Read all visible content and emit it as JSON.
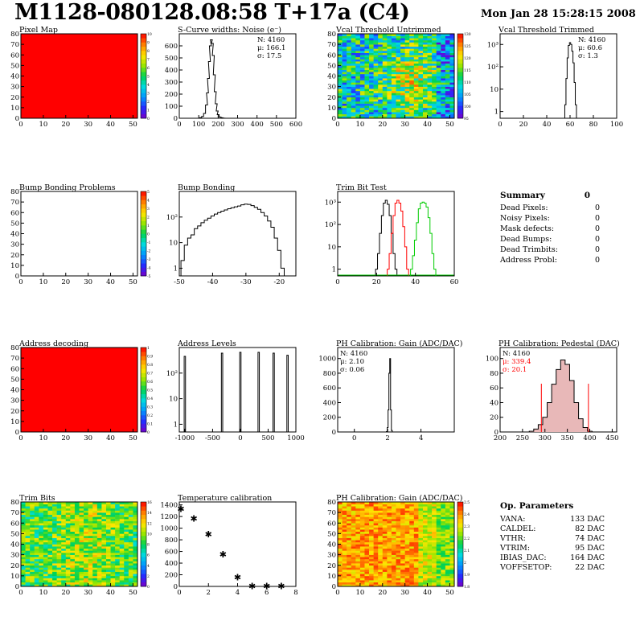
{
  "title": "M1128-080128.08:58 T+17a (C4)",
  "date": "Mon Jan 28 15:28:15 2008",
  "colors": {
    "bg": "#ffffff",
    "red": "#ff0000",
    "green": "#00cc00",
    "black": "#000000",
    "pedestal_fill": "#e8b8b8"
  },
  "summary": {
    "title": "Summary",
    "total": "0",
    "rows": [
      {
        "label": "Dead Pixels:",
        "value": "0"
      },
      {
        "label": "Noisy Pixels:",
        "value": "0"
      },
      {
        "label": "Mask defects:",
        "value": "0"
      },
      {
        "label": "Dead Bumps:",
        "value": "0"
      },
      {
        "label": "Dead Trimbits:",
        "value": "0"
      },
      {
        "label": "Address Probl:",
        "value": "0"
      }
    ]
  },
  "op_params": {
    "title": "Op. Parameters",
    "rows": [
      {
        "label": "VANA:",
        "value": "133 DAC"
      },
      {
        "label": "CALDEL:",
        "value": "82 DAC"
      },
      {
        "label": "VTHR:",
        "value": "74 DAC"
      },
      {
        "label": "VTRIM:",
        "value": "95 DAC"
      },
      {
        "label": "IBIAS_DAC:",
        "value": "164 DAC"
      },
      {
        "label": "VOFFSETOP:",
        "value": "22 DAC"
      }
    ]
  },
  "chart_data": [
    {
      "id": "pixel-map",
      "type": "heatmap",
      "title": "Pixel Map",
      "xlim": [
        0,
        52
      ],
      "ylim": [
        0,
        80
      ],
      "x_ticks": [
        "0",
        "10",
        "20",
        "30",
        "40",
        "50"
      ],
      "y_ticks": [
        "0",
        "10",
        "20",
        "30",
        "40",
        "50",
        "60",
        "70",
        "80"
      ],
      "z_ticks": [
        "0",
        "1",
        "2",
        "3",
        "4",
        "5",
        "6",
        "7",
        "8",
        "9",
        "10"
      ],
      "uniform_color": "#ff0000",
      "zlim": [
        0,
        10
      ]
    },
    {
      "id": "noise",
      "type": "bar",
      "title": "S-Curve widths: Noise (e⁻)",
      "xlim": [
        0,
        600
      ],
      "ylim": [
        0,
        700
      ],
      "x_ticks": [
        "0",
        "100",
        "200",
        "300",
        "400",
        "500",
        "600"
      ],
      "y_ticks": [
        "0",
        "100",
        "200",
        "300",
        "400",
        "500",
        "600"
      ],
      "stats": [
        "N: 4160",
        "μ: 166.1",
        "σ: 17.5"
      ],
      "x": [
        100,
        110,
        120,
        130,
        140,
        145,
        150,
        155,
        160,
        165,
        170,
        175,
        180,
        185,
        190,
        195,
        200,
        210,
        220,
        230,
        240
      ],
      "values": [
        0,
        5,
        15,
        40,
        110,
        210,
        330,
        470,
        600,
        650,
        620,
        520,
        360,
        220,
        120,
        60,
        30,
        10,
        4,
        1,
        0
      ]
    },
    {
      "id": "vcal-untrimmed",
      "type": "heatmap",
      "title": "Vcal Threshold Untrimmed",
      "xlim": [
        0,
        52
      ],
      "ylim": [
        0,
        80
      ],
      "x_ticks": [
        "0",
        "10",
        "20",
        "30",
        "40",
        "50"
      ],
      "y_ticks": [
        "0",
        "10",
        "20",
        "30",
        "40",
        "50",
        "60",
        "70",
        "80"
      ],
      "z_ticks": [
        "95",
        "100",
        "105",
        "110",
        "115",
        "120",
        "125",
        "130"
      ],
      "zlim": [
        95,
        130
      ]
    },
    {
      "id": "vcal-trimmed",
      "type": "bar",
      "title": "Vcal Threshold Trimmed",
      "xlim": [
        0,
        100
      ],
      "ylim_log": [
        0.5,
        3000
      ],
      "log_y": true,
      "x_ticks": [
        "0",
        "20",
        "40",
        "60",
        "80",
        "100"
      ],
      "y_ticks": [
        "1",
        "10",
        "10²",
        "10³"
      ],
      "stats": [
        "N: 4160",
        "μ: 60.6",
        "σ:  1.3"
      ],
      "x": [
        56,
        57,
        58,
        59,
        60,
        61,
        62,
        63,
        64,
        65
      ],
      "values": [
        2,
        30,
        250,
        900,
        1200,
        1000,
        500,
        150,
        20,
        2
      ]
    },
    {
      "id": "bump-problems",
      "type": "heatmap",
      "title": "Bump Bonding Problems",
      "xlim": [
        0,
        52
      ],
      "ylim": [
        0,
        80
      ],
      "x_ticks": [
        "0",
        "10",
        "20",
        "30",
        "40",
        "50"
      ],
      "y_ticks": [
        "0",
        "10",
        "20",
        "30",
        "40",
        "50",
        "60",
        "70",
        "80"
      ],
      "z_ticks": [
        "-5",
        "-4",
        "-3",
        "-2",
        "-1",
        "0",
        "1",
        "2",
        "3",
        "4",
        "5"
      ],
      "empty": true
    },
    {
      "id": "bump-bonding",
      "type": "bar",
      "title": "Bump Bonding",
      "xlim": [
        -50,
        -15
      ],
      "log_y": true,
      "ylim_log": [
        0.5,
        1000
      ],
      "x_ticks": [
        "-50",
        "-40",
        "-30",
        "-20"
      ],
      "y_ticks": [
        "1",
        "10",
        "10²"
      ],
      "x": [
        -49,
        -48,
        -47,
        -46,
        -45,
        -44,
        -43,
        -42,
        -41,
        -40,
        -39,
        -38,
        -37,
        -36,
        -35,
        -34,
        -33,
        -32,
        -31,
        -30,
        -29,
        -28,
        -27,
        -26,
        -25,
        -24,
        -23,
        -22,
        -21,
        -20,
        -19,
        -18
      ],
      "values": [
        2,
        8,
        15,
        20,
        35,
        45,
        60,
        75,
        90,
        110,
        130,
        150,
        170,
        190,
        210,
        230,
        250,
        270,
        300,
        320,
        310,
        280,
        240,
        200,
        150,
        110,
        70,
        40,
        15,
        5,
        1,
        0
      ]
    },
    {
      "id": "trim-bit-test",
      "type": "line",
      "title": "Trim Bit Test",
      "xlim": [
        0,
        60
      ],
      "log_y": true,
      "ylim_log": [
        0.5,
        3000
      ],
      "x_ticks": [
        "0",
        "20",
        "40",
        "60"
      ],
      "y_ticks": [
        "1",
        "10",
        "10²",
        "10³"
      ],
      "series": [
        {
          "color": "#000000",
          "x": [
            20,
            21,
            22,
            23,
            24,
            25,
            26,
            27,
            28,
            29,
            30
          ],
          "values": [
            1,
            5,
            40,
            250,
            900,
            1200,
            800,
            250,
            40,
            5,
            1
          ]
        },
        {
          "color": "#ff0000",
          "x": [
            26,
            27,
            28,
            29,
            30,
            31,
            32,
            33,
            34,
            35,
            36
          ],
          "values": [
            1,
            5,
            40,
            250,
            900,
            1200,
            900,
            400,
            80,
            10,
            1
          ]
        },
        {
          "color": "#00cc00",
          "x": [
            38,
            39,
            40,
            41,
            42,
            43,
            44,
            45,
            46,
            47,
            48,
            49,
            50
          ],
          "values": [
            1,
            4,
            20,
            120,
            500,
            900,
            1000,
            900,
            600,
            200,
            40,
            5,
            1
          ]
        }
      ]
    },
    {
      "id": "address-decoding",
      "type": "heatmap",
      "title": "Address decoding",
      "xlim": [
        0,
        52
      ],
      "ylim": [
        0,
        80
      ],
      "x_ticks": [
        "0",
        "10",
        "20",
        "30",
        "40",
        "50"
      ],
      "y_ticks": [
        "0",
        "10",
        "20",
        "30",
        "40",
        "50",
        "60",
        "70",
        "80"
      ],
      "z_ticks": [
        "0",
        "0.1",
        "0.2",
        "0.3",
        "0.4",
        "0.5",
        "0.6",
        "0.7",
        "0.8",
        "0.9",
        "1"
      ],
      "uniform_color": "#ff0000",
      "zlim": [
        0,
        1
      ]
    },
    {
      "id": "address-levels",
      "type": "bar",
      "title": "Address Levels",
      "xlim": [
        -1100,
        1000
      ],
      "log_y": true,
      "ylim_log": [
        0.5,
        1000
      ],
      "x_ticks": [
        "-1000",
        "-500",
        "0",
        "500",
        "1000"
      ],
      "y_ticks": [
        "1",
        "10",
        "10²"
      ],
      "peaks": [
        -1000,
        -330,
        0,
        330,
        600,
        850
      ],
      "values": [
        450,
        600,
        650,
        650,
        600,
        500
      ]
    },
    {
      "id": "ph-gain",
      "type": "bar",
      "title": "PH Calibration: Gain (ADC/DAC)",
      "xlim": [
        -1,
        6
      ],
      "ylim": [
        0,
        1150
      ],
      "x_ticks": [
        "0",
        "2",
        "4"
      ],
      "y_ticks": [
        "0",
        "200",
        "400",
        "600",
        "800",
        "1000"
      ],
      "stats": [
        "N: 4160",
        "μ: 2.10",
        "σ: 0.06"
      ],
      "x": [
        1.9,
        1.95,
        2.0,
        2.05,
        2.1,
        2.15,
        2.2,
        2.25,
        2.3
      ],
      "values": [
        0,
        5,
        60,
        300,
        800,
        1000,
        300,
        20,
        0
      ]
    },
    {
      "id": "ph-pedestal",
      "type": "bar",
      "title": "PH Calibration: Pedestal (DAC)",
      "xlim": [
        200,
        460
      ],
      "ylim": [
        0,
        115
      ],
      "x_ticks": [
        "200",
        "250",
        "300",
        "350",
        "400",
        "450"
      ],
      "y_ticks": [
        "0",
        "20",
        "40",
        "60",
        "80",
        "100"
      ],
      "stats": [
        "N: 4160",
        "μ: 339.4",
        "σ: 20.1"
      ],
      "x": [
        270,
        280,
        290,
        300,
        310,
        320,
        330,
        340,
        350,
        360,
        370,
        380,
        390,
        400
      ],
      "values": [
        1,
        4,
        10,
        20,
        40,
        65,
        85,
        98,
        92,
        70,
        40,
        18,
        6,
        1
      ],
      "cut_lines": [
        292,
        397
      ]
    },
    {
      "id": "trim-bits",
      "type": "heatmap",
      "title": "Trim Bits",
      "xlim": [
        0,
        52
      ],
      "ylim": [
        0,
        80
      ],
      "x_ticks": [
        "0",
        "10",
        "20",
        "30",
        "40",
        "50"
      ],
      "y_ticks": [
        "0",
        "10",
        "20",
        "30",
        "40",
        "50",
        "60",
        "70",
        "80"
      ],
      "z_ticks": [
        "0",
        "2",
        "4",
        "6",
        "8",
        "10",
        "12",
        "14",
        "16"
      ],
      "zlim": [
        0,
        16
      ]
    },
    {
      "id": "temperature",
      "type": "scatter",
      "title": "Temperature calibration",
      "xlim": [
        0,
        8
      ],
      "ylim": [
        0,
        1450
      ],
      "x_ticks": [
        "0",
        "2",
        "4",
        "6",
        "8"
      ],
      "y_ticks": [
        "0",
        "200",
        "400",
        "600",
        "800",
        "1000",
        "1200",
        "1400"
      ],
      "x": [
        0,
        1,
        2,
        3,
        4,
        5,
        6,
        7
      ],
      "values": [
        1330,
        1170,
        900,
        550,
        160,
        10,
        10,
        10
      ]
    },
    {
      "id": "ph-gain-map",
      "type": "heatmap",
      "title": "PH Calibration: Gain (ADC/DAC)",
      "xlim": [
        0,
        52
      ],
      "ylim": [
        0,
        80
      ],
      "x_ticks": [
        "0",
        "10",
        "20",
        "30",
        "40",
        "50"
      ],
      "y_ticks": [
        "0",
        "10",
        "20",
        "30",
        "40",
        "50",
        "60",
        "70",
        "80"
      ],
      "z_ticks": [
        "1.8",
        "1.9",
        "2",
        "2.1",
        "2.2",
        "2.3",
        "2.4",
        "2.5"
      ],
      "zlim": [
        1.8,
        2.5
      ]
    }
  ]
}
